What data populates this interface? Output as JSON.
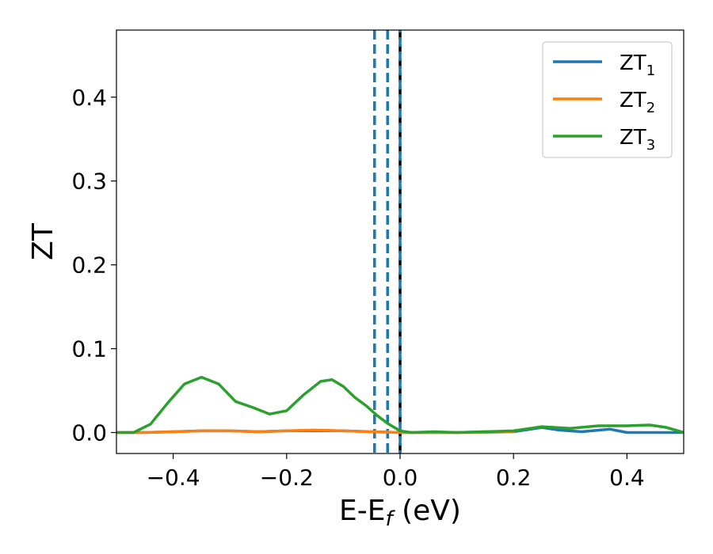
{
  "chart_data": {
    "type": "line",
    "title": "",
    "xlabel": {
      "main": "E-E",
      "sub": "f",
      "unit": " (eV)"
    },
    "ylabel": "ZT",
    "xlim": [
      -0.5,
      0.5
    ],
    "ylim": [
      -0.025,
      0.48
    ],
    "xticks": [
      -0.4,
      -0.2,
      0.0,
      0.2,
      0.4
    ],
    "xtick_labels": [
      "−0.4",
      "−0.2",
      "0.0",
      "0.2",
      "0.4"
    ],
    "yticks": [
      0.0,
      0.1,
      0.2,
      0.3,
      0.4
    ],
    "ytick_labels": [
      "0.0",
      "0.1",
      "0.2",
      "0.3",
      "0.4"
    ],
    "grid": false,
    "legend_position": "top-right",
    "vlines": [
      {
        "x": -0.045,
        "style": "dashed",
        "color": "#1f77b4"
      },
      {
        "x": -0.022,
        "style": "dashed",
        "color": "#1f77b4"
      },
      {
        "x": 0.0,
        "style": "dashed",
        "color": "#000000"
      },
      {
        "x": 0.0,
        "style": "dashed-overlay",
        "color": "#1f77b4"
      }
    ],
    "series": [
      {
        "name": {
          "main": "ZT",
          "sub": "1"
        },
        "color": "#1f77b4",
        "x": [
          -0.5,
          -0.45,
          -0.4,
          -0.35,
          -0.3,
          -0.25,
          -0.2,
          -0.15,
          -0.1,
          -0.05,
          0.0,
          0.05,
          0.1,
          0.15,
          0.2,
          0.25,
          0.28,
          0.32,
          0.37,
          0.4,
          0.45,
          0.5
        ],
        "y": [
          0.0,
          0.0,
          0.001,
          0.002,
          0.002,
          0.001,
          0.002,
          0.002,
          0.002,
          0.001,
          0.0,
          0.0,
          0.0,
          0.001,
          0.001,
          0.006,
          0.003,
          0.001,
          0.004,
          0.0,
          0.0,
          0.0
        ]
      },
      {
        "name": {
          "main": "ZT",
          "sub": "2"
        },
        "color": "#ff7f0e",
        "x": [
          -0.5,
          -0.45,
          -0.4,
          -0.35,
          -0.3,
          -0.25,
          -0.2,
          -0.15,
          -0.1,
          -0.05,
          0.0,
          0.05,
          0.1,
          0.15,
          0.2
        ],
        "y": [
          0.0,
          0.0,
          0.001,
          0.002,
          0.002,
          0.001,
          0.002,
          0.003,
          0.002,
          0.001,
          0.0,
          0.0,
          0.0,
          0.0,
          0.001
        ]
      },
      {
        "name": {
          "main": "ZT",
          "sub": "3"
        },
        "color": "#2ca02c",
        "x": [
          -0.5,
          -0.47,
          -0.44,
          -0.41,
          -0.38,
          -0.35,
          -0.32,
          -0.29,
          -0.26,
          -0.23,
          -0.2,
          -0.17,
          -0.14,
          -0.12,
          -0.1,
          -0.08,
          -0.06,
          -0.04,
          -0.02,
          0.0,
          0.02,
          0.06,
          0.1,
          0.15,
          0.2,
          0.25,
          0.3,
          0.35,
          0.4,
          0.44,
          0.47,
          0.5
        ],
        "y": [
          0.0,
          0.0,
          0.01,
          0.035,
          0.058,
          0.066,
          0.058,
          0.037,
          0.03,
          0.022,
          0.026,
          0.045,
          0.061,
          0.063,
          0.055,
          0.042,
          0.032,
          0.02,
          0.01,
          0.002,
          0.0,
          0.001,
          0.0,
          0.001,
          0.002,
          0.007,
          0.005,
          0.008,
          0.008,
          0.009,
          0.006,
          0.0
        ]
      }
    ]
  }
}
